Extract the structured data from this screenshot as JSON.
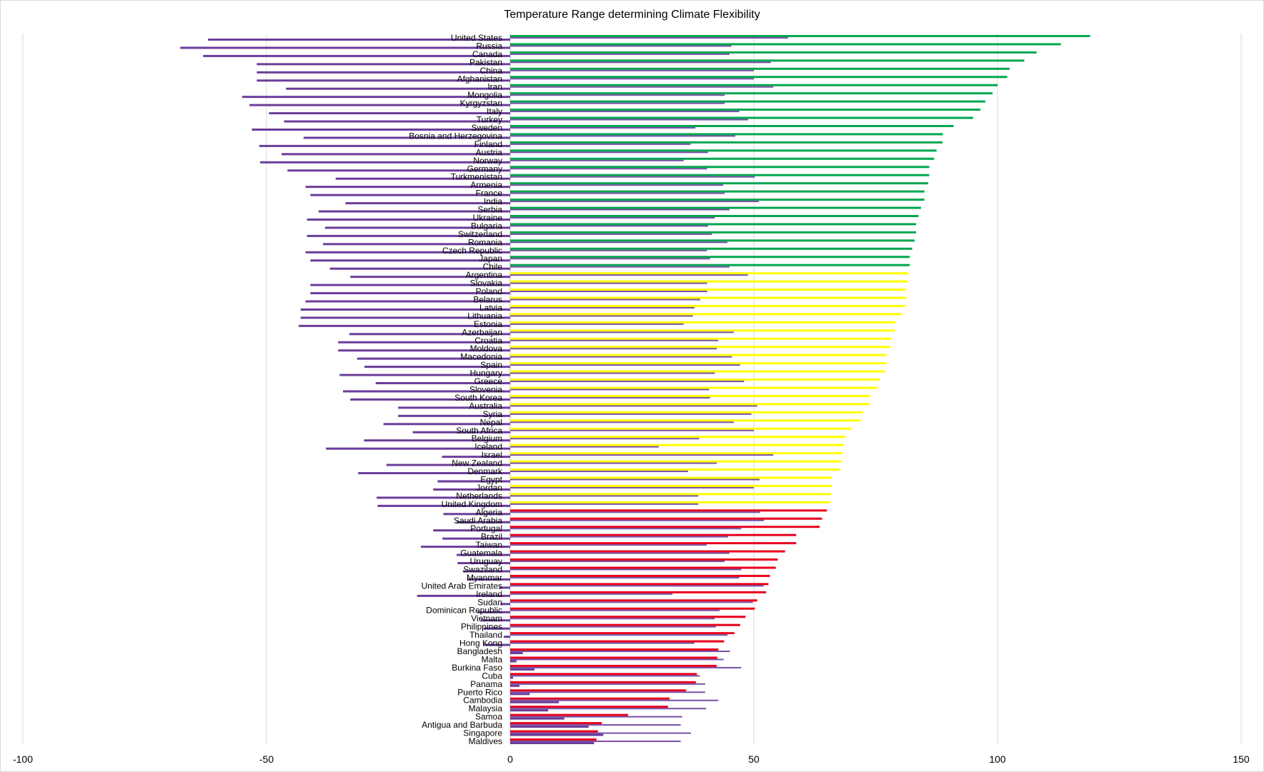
{
  "chart_data": {
    "type": "bar",
    "orientation": "horizontal",
    "title": "Temperature Range determining Climate Flexibility",
    "xlim": [
      -100,
      150
    ],
    "xticks": [
      "-100",
      "-50",
      "0",
      "50",
      "100",
      "150"
    ],
    "grid": true,
    "colors": {
      "high_range": "#00a650",
      "mid_range": "#ffff00",
      "low_range": "#e8001c",
      "min_max": "#6a3d9a"
    },
    "categories": [
      "United States",
      "Russia",
      "Canada",
      "Pakistan",
      "China",
      "Afghanistan",
      "Iran",
      "Mongolia",
      "Kyrgyzstan",
      "Italy",
      "Turkey",
      "Sweden",
      "Bosnia and Herzegovina",
      "Finland",
      "Austria",
      "Norway",
      "Germany",
      "Turkmenistan",
      "Armenia",
      "France",
      "India",
      "Serbia",
      "Ukraine",
      "Bulgaria",
      "Switzerland",
      "Romania",
      "Czech Republic",
      "Japan",
      "Chile",
      "Argentina",
      "Slovakia",
      "Poland",
      "Belarus",
      "Latvia",
      "Lithuania",
      "Estonia",
      "Azerbaijan",
      "Croatia",
      "Moldova",
      "Macedonia",
      "Spain",
      "Hungary",
      "Greece",
      "Slovenia",
      "South Korea",
      "Australia",
      "Syria",
      "Nepal",
      "South Africa",
      "Belgium",
      "Iceland",
      "Israel",
      "New Zealand",
      "Denmark",
      "Egypt",
      "Jordan",
      "Netherlands",
      "United Kingdom",
      "Algeria",
      "Saudi Arabia",
      "Portugal",
      "Brazil",
      "Taiwan",
      "Guatemala",
      "Uruguay",
      "Swaziland",
      "Myanmar",
      "United Arab Emirates",
      "Ireland",
      "Sudan",
      "Dominican Republic",
      "Vietnam",
      "Philippines",
      "Thailand",
      "Hong Kong",
      "Bangladesh",
      "Malta",
      "Burkina Faso",
      "Cuba",
      "Panama",
      "Puerto Rico",
      "Cambodia",
      "Malaysia",
      "Samoa",
      "Antigua and Barbuda",
      "Singapore",
      "Maldives"
    ],
    "series": [
      {
        "key": "range",
        "values": [
          119,
          113,
          108,
          105.5,
          102.5,
          102,
          100,
          99,
          97.5,
          96.5,
          95,
          91,
          88.8,
          88.7,
          87.5,
          87,
          86,
          86,
          85.8,
          85,
          85,
          84.3,
          83.8,
          83.3,
          83.3,
          83,
          82.5,
          82,
          82,
          81.7,
          81.5,
          81.2,
          81.2,
          81,
          80.4,
          79,
          78.9,
          78.2,
          78,
          77.2,
          77.2,
          76.9,
          75.9,
          75.4,
          73.9,
          73.8,
          72.3,
          71.9,
          70,
          68.8,
          68.5,
          68.2,
          68,
          67.7,
          66,
          66,
          65.8,
          65.7,
          65,
          64,
          63.5,
          58.7,
          58.7,
          56.4,
          54.9,
          54.5,
          53.3,
          53,
          52.5,
          50.7,
          50.2,
          48.3,
          47.2,
          46,
          43.9,
          42.7,
          42.5,
          42.4,
          38.3,
          38.1,
          36.1,
          32.7,
          32.4,
          24.2,
          18.8,
          18,
          17.7
        ]
      },
      {
        "key": "max",
        "values": [
          57,
          45.4,
          45,
          53.5,
          50,
          50,
          54,
          44,
          44,
          47,
          48.8,
          38,
          46.2,
          37,
          40.6,
          35.6,
          40.4,
          50.2,
          43.7,
          44,
          51,
          45,
          42,
          40.6,
          41.4,
          44.6,
          40.4,
          41,
          45,
          48.8,
          40.4,
          40.4,
          39,
          37.8,
          37.5,
          35.6,
          45.9,
          42.7,
          42.4,
          45.5,
          47.2,
          42,
          48,
          40.8,
          41,
          50.7,
          49.5,
          45.9,
          50,
          38.8,
          30.5,
          54,
          42.4,
          36.5,
          51.2,
          50,
          38.6,
          38.6,
          51.3,
          52.1,
          47.4,
          44.7,
          40.3,
          45,
          44,
          47.4,
          47,
          52,
          33.3,
          49.8,
          43,
          42,
          42.2,
          44.6,
          37.8,
          45.1,
          43.8,
          47.4,
          38.9,
          40,
          40,
          42.7,
          40.2,
          35.3,
          35,
          37.1,
          35
        ]
      },
      {
        "key": "min",
        "values": [
          -62,
          -67.7,
          -63,
          -52,
          -52,
          -52,
          -46,
          -55,
          -53.5,
          -49.5,
          -46.4,
          -53,
          -42.4,
          -51.5,
          -46.9,
          -51.3,
          -45.7,
          -35.8,
          -42,
          -41,
          -33.8,
          -39.3,
          -41.7,
          -38,
          -41.7,
          -38.4,
          -42,
          -41,
          -37,
          -32.8,
          -41,
          -41,
          -42,
          -43,
          -43,
          -43.4,
          -33,
          -35.3,
          -35.3,
          -31.4,
          -29.9,
          -35,
          -27.6,
          -34.3,
          -32.8,
          -23,
          -23,
          -26,
          -20,
          -30,
          -37.8,
          -14,
          -25.4,
          -31.2,
          -14.9,
          -15.8,
          -27.4,
          -27.2,
          -13.7,
          -11,
          -15.8,
          -13.9,
          -18.3,
          -11,
          -10.8,
          -9.7,
          -8.7,
          -2.2,
          -19.1,
          -2,
          -6.7,
          -6,
          -5.4,
          -1.3,
          -5.4,
          2.6,
          1.3,
          5,
          0.6,
          1.9,
          4,
          10,
          7.8,
          11.1,
          16.1,
          19.1,
          17.2
        ]
      }
    ]
  }
}
